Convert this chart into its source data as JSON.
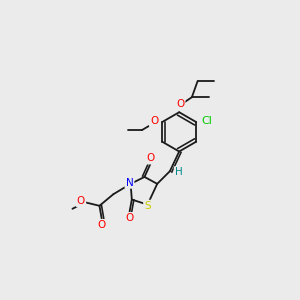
{
  "bg_color": "#ebebeb",
  "bond_color": "#1a1a1a",
  "atom_colors": {
    "O": "#ff0000",
    "N": "#0000ff",
    "S": "#cccc00",
    "Cl": "#00cc00",
    "H": "#008888",
    "C": "#1a1a1a"
  },
  "font_size": 7.5,
  "line_width": 1.3
}
